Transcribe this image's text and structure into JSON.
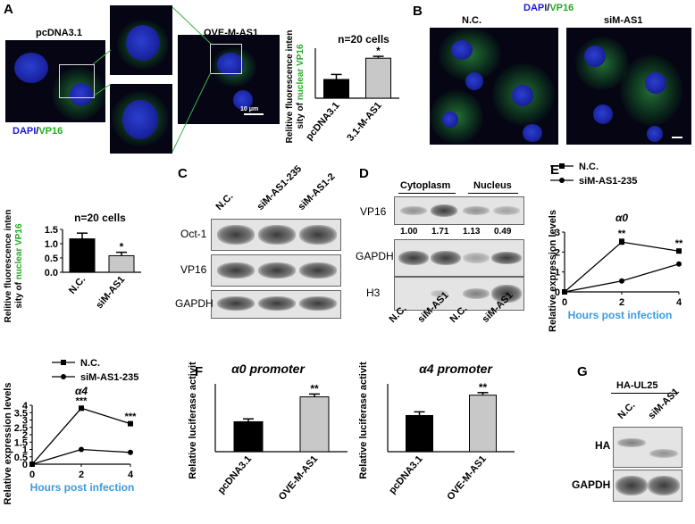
{
  "panels": {
    "A": "A",
    "B": "B",
    "C": "C",
    "D": "D",
    "E": "E",
    "F": "F",
    "G": "G"
  },
  "panel_a": {
    "img1_title": "pcDNA3.1",
    "img2_title": "OVE-M-AS1",
    "scale": "10 μm",
    "stain_dapi": "DAPI",
    "stain_slash": "/",
    "stain_vp16": "VP16"
  },
  "panel_b": {
    "stain_dapi": "DAPI",
    "stain_slash": "/",
    "stain_vp16": "VP16",
    "label_nc": "N.C.",
    "label_si": "siM-AS1"
  },
  "panel_c": {
    "lanes": [
      "N.C.",
      "siM-AS1-235",
      "siM-AS1-2"
    ],
    "rows": [
      "Oct-1",
      "VP16",
      "GAPDH"
    ]
  },
  "panel_d": {
    "groups": [
      "Cytoplasm",
      "Nucleus"
    ],
    "rows": [
      "VP16",
      "GAPDH",
      "H3"
    ],
    "quant": [
      "1.00",
      "1.71",
      "1.13",
      "0.49"
    ],
    "lanes": [
      "N.C.",
      "siM-AS1",
      "N.C.",
      "siM-AS1"
    ]
  },
  "panel_g": {
    "header": "HA-UL25",
    "lanes": [
      "N.C.",
      "siM-AS1"
    ],
    "rows": [
      "HA",
      "GAPDH"
    ]
  },
  "chart_data": [
    {
      "id": "A-bar",
      "type": "bar",
      "title": "n=20 cells",
      "ylabel": "Relitive fluorescence inten sity of nuclear VP16",
      "categories": [
        "pcDNA3.1",
        "3.1-M-AS1"
      ],
      "values": [
        1.5,
        3.2
      ],
      "errors": [
        0.4,
        0.15
      ],
      "ylim": [
        0,
        4
      ],
      "annotations": [
        "",
        "*"
      ],
      "colors": [
        "#000000",
        "#c8c8c8"
      ]
    },
    {
      "id": "B-bar",
      "type": "bar",
      "title": "n=20 cells",
      "ylabel": "Relitive fluorescence inten sity of nuclear VP16",
      "categories": [
        "N.C.",
        "siM-AS1"
      ],
      "values": [
        1.17,
        0.58
      ],
      "errors": [
        0.2,
        0.12
      ],
      "ylim": [
        0,
        1.5
      ],
      "yticks": [
        "0.0",
        "0.5",
        "1.0",
        "1.5"
      ],
      "annotations": [
        "",
        "*"
      ],
      "colors": [
        "#000000",
        "#c8c8c8"
      ]
    },
    {
      "id": "E-line",
      "type": "line",
      "title": "α0",
      "xlabel": "Hours post infection",
      "ylabel": "Relative expression levels",
      "x": [
        0,
        2,
        4
      ],
      "ylim": [
        0,
        3
      ],
      "yticks": [
        "0",
        "1",
        "2",
        "3"
      ],
      "xticks": [
        "0",
        "2",
        "4"
      ],
      "series": [
        {
          "name": "N.C.",
          "values": [
            0,
            2.5,
            2.05
          ],
          "marker": "square",
          "errors": [
            0,
            0.15,
            0.1
          ]
        },
        {
          "name": "siM-AS1-235",
          "values": [
            0,
            0.55,
            1.4
          ],
          "marker": "circle",
          "errors": [
            0,
            0,
            0
          ]
        }
      ],
      "annotations": [
        "",
        "**",
        "**"
      ]
    },
    {
      "id": "E2-line",
      "type": "line",
      "title": "α4",
      "xlabel": "Hours post infection",
      "ylabel": "Relative expression levels",
      "x": [
        0,
        2,
        4
      ],
      "ylim": [
        0,
        4
      ],
      "yticks": [
        "0",
        "0.5",
        "1",
        "1.5",
        "2",
        "2.5",
        "3",
        "3.5",
        "4"
      ],
      "xticks": [
        "0",
        "2",
        "4"
      ],
      "series": [
        {
          "name": "N.C.",
          "values": [
            0,
            3.8,
            2.75
          ],
          "marker": "square",
          "errors": [
            0,
            0.1,
            0.1
          ]
        },
        {
          "name": "siM-AS1-235",
          "values": [
            0,
            1.0,
            0.8
          ],
          "marker": "circle",
          "errors": [
            0,
            0,
            0
          ]
        }
      ],
      "annotations": [
        "",
        "***",
        "***"
      ]
    },
    {
      "id": "F1-bar",
      "type": "bar",
      "title": "α0 promoter",
      "ylabel": "Relative luciferase activity",
      "categories": [
        "pcDNA3.1",
        "OVE-M-AS1"
      ],
      "values": [
        5.3,
        9.7
      ],
      "errors": [
        0.5,
        0.5
      ],
      "ylim": [
        0,
        12
      ],
      "annotations": [
        "",
        "**"
      ],
      "colors": [
        "#000000",
        "#c8c8c8"
      ]
    },
    {
      "id": "F2-bar",
      "type": "bar",
      "title": "α4 promoter",
      "ylabel": "Relative luciferase activity",
      "categories": [
        "pcDNA3.1",
        "OVE-M-AS1"
      ],
      "values": [
        12.8,
        20.0
      ],
      "errors": [
        1.3,
        0.9
      ],
      "ylim": [
        0,
        24
      ],
      "annotations": [
        "",
        "**"
      ],
      "colors": [
        "#000000",
        "#c8c8c8"
      ]
    }
  ]
}
